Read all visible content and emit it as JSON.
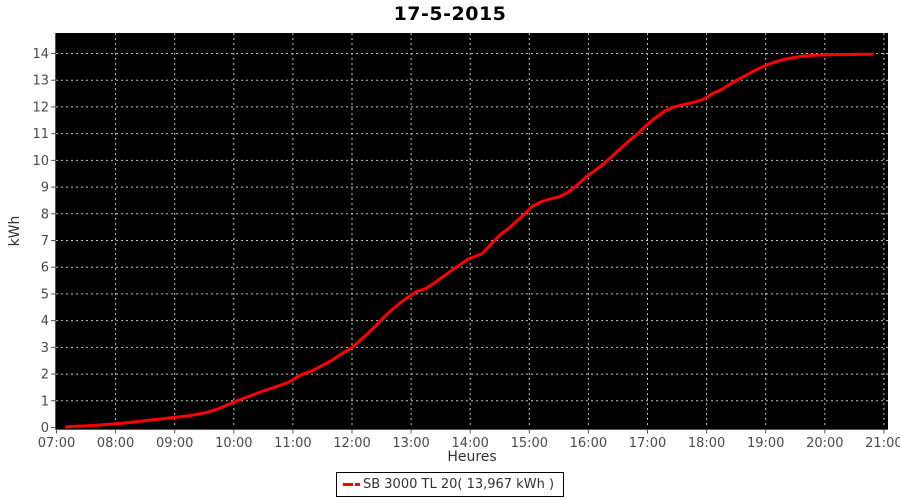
{
  "chart": {
    "title": "17-5-2015",
    "x_axis_label": "Heures",
    "y_axis_label": "kWh",
    "legend": {
      "label": "SB 3000 TL 20( 13,967 kWh )",
      "series_color": "#ff0000"
    },
    "colors": {
      "page_background": "#ffffff",
      "plot_background": "#000000",
      "gridline": "#e6e6e6",
      "line": "#ff0000",
      "axis": "#555555",
      "tick_label": "#4a4a4a",
      "title": "#000000"
    }
  },
  "chart_data": {
    "type": "line",
    "title": "17-5-2015",
    "xlabel": "Heures",
    "ylabel": "kWh",
    "grid": true,
    "legend_position": "bottom",
    "plot_background": "black",
    "x_ticks": [
      "07:00",
      "08:00",
      "09:00",
      "10:00",
      "11:00",
      "12:00",
      "13:00",
      "14:00",
      "15:00",
      "16:00",
      "17:00",
      "18:00",
      "19:00",
      "20:00",
      "21:00"
    ],
    "y_ticks": [
      "0",
      "1",
      "2",
      "3",
      "4",
      "5",
      "6",
      "7",
      "8",
      "9",
      "10",
      "11",
      "12",
      "13",
      "14"
    ],
    "xlim_hours": [
      7.0,
      21.07
    ],
    "ylim": [
      0,
      14.8
    ],
    "series": [
      {
        "name": "SB 3000 TL 20",
        "total_label": "13,967 kWh",
        "color": "#ff0000",
        "x_hours": [
          7.17,
          7.3,
          7.5,
          7.7,
          7.9,
          8.0,
          8.2,
          8.4,
          8.6,
          8.8,
          8.95,
          9.1,
          9.25,
          9.4,
          9.55,
          9.7,
          9.85,
          10.0,
          10.15,
          10.3,
          10.45,
          10.6,
          10.75,
          10.9,
          11.0,
          11.1,
          11.2,
          11.35,
          11.5,
          11.65,
          11.8,
          11.9,
          12.0,
          12.1,
          12.25,
          12.4,
          12.55,
          12.7,
          12.85,
          13.0,
          13.1,
          13.25,
          13.4,
          13.55,
          13.7,
          13.85,
          13.95,
          14.05,
          14.2,
          14.35,
          14.5,
          14.65,
          14.8,
          14.95,
          15.05,
          15.2,
          15.35,
          15.5,
          15.65,
          15.8,
          15.95,
          16.1,
          16.25,
          16.4,
          16.55,
          16.7,
          16.85,
          17.0,
          17.15,
          17.3,
          17.45,
          17.6,
          17.75,
          17.9,
          18.0,
          18.1,
          18.25,
          18.4,
          18.55,
          18.7,
          18.85,
          19.0,
          19.15,
          19.3,
          19.45,
          19.6,
          19.75,
          19.9,
          20.05,
          20.2,
          20.4,
          20.6,
          20.8
        ],
        "kwh": [
          0.02,
          0.04,
          0.06,
          0.09,
          0.12,
          0.14,
          0.18,
          0.23,
          0.28,
          0.33,
          0.37,
          0.4,
          0.44,
          0.5,
          0.57,
          0.67,
          0.8,
          0.95,
          1.08,
          1.2,
          1.33,
          1.44,
          1.55,
          1.67,
          1.78,
          1.92,
          2.02,
          2.15,
          2.32,
          2.5,
          2.72,
          2.86,
          3.0,
          3.18,
          3.48,
          3.8,
          4.15,
          4.45,
          4.72,
          4.95,
          5.1,
          5.2,
          5.42,
          5.66,
          5.9,
          6.12,
          6.28,
          6.38,
          6.5,
          6.85,
          7.2,
          7.45,
          7.75,
          8.05,
          8.28,
          8.45,
          8.55,
          8.63,
          8.8,
          9.05,
          9.35,
          9.6,
          9.85,
          10.15,
          10.45,
          10.75,
          11.02,
          11.35,
          11.62,
          11.85,
          12.0,
          12.08,
          12.15,
          12.25,
          12.35,
          12.5,
          12.65,
          12.85,
          13.05,
          13.22,
          13.4,
          13.55,
          13.68,
          13.77,
          13.84,
          13.89,
          13.92,
          13.94,
          13.95,
          13.96,
          13.96,
          13.97,
          13.97
        ]
      }
    ]
  }
}
